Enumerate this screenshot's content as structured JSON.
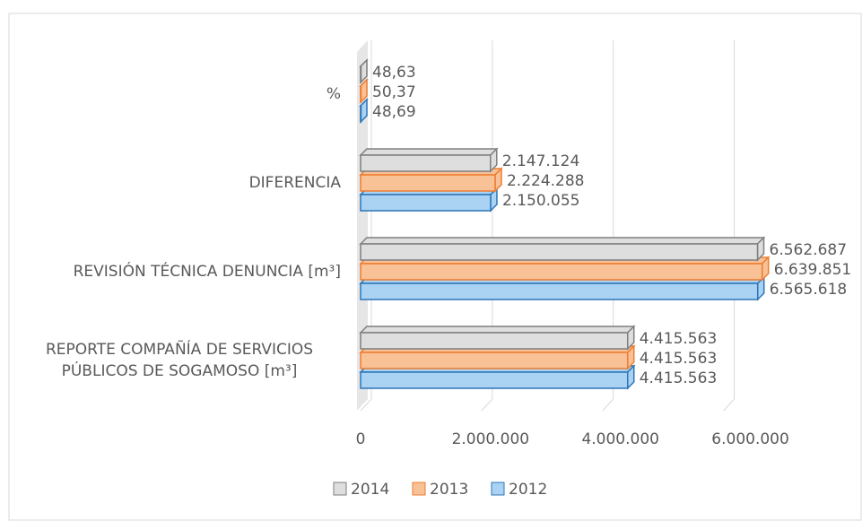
{
  "chart_data": {
    "type": "bar3d_horizontal",
    "categories": [
      "REPORTE COMPAÑÍA DE SERVICIOS PÚBLICOS DE SOGAMOSO [m³]",
      "REVISIÓN TÉCNICA DENUNCIA [m³]",
      "DIFERENCIA",
      "%"
    ],
    "series": [
      {
        "name": "2012",
        "color": "#a9d2f3",
        "edge_color": "#2e75b6",
        "values": [
          4415563,
          6565618,
          2150055,
          48.69
        ],
        "value_labels": [
          "4.415.563",
          "6.565.618",
          "2.150.055",
          "48,69"
        ]
      },
      {
        "name": "2013",
        "color": "#f8c196",
        "edge_color": "#ed7d31",
        "values": [
          4415563,
          6639851,
          2224288,
          50.37
        ],
        "value_labels": [
          "4.415.563",
          "6.639.851",
          "2.224.288",
          "50,37"
        ]
      },
      {
        "name": "2014",
        "color": "#dedede",
        "edge_color": "#7f7f7f",
        "values": [
          4415563,
          6562687,
          2147124,
          48.63
        ],
        "value_labels": [
          "4.415.563",
          "6.562.687",
          "2.147.124",
          "48,63"
        ]
      }
    ],
    "xlim": [
      0,
      7000000
    ],
    "xticks": [
      0,
      {
        "value": 2000000,
        "label": "2.000.000"
      },
      {
        "value": 4000000,
        "label": "4.000.000"
      },
      {
        "value": 6000000,
        "label": "6.000.000"
      }
    ],
    "grid": true
  }
}
